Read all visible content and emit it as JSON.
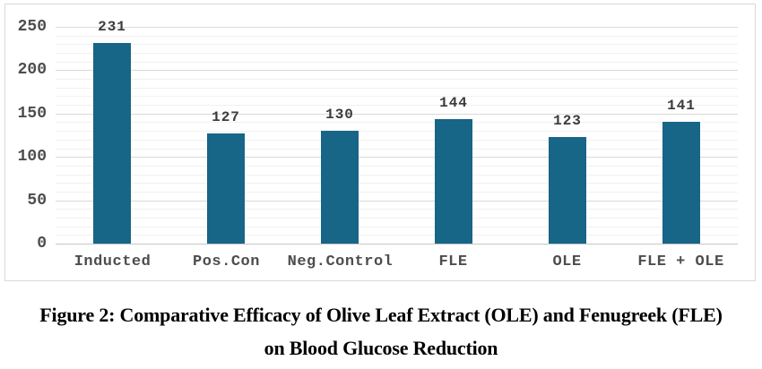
{
  "chart_data": {
    "type": "bar",
    "categories": [
      "Inducted",
      "Pos.Con",
      "Neg.Control",
      "FLE",
      "OLE",
      "FLE + OLE"
    ],
    "values": [
      231,
      127,
      130,
      144,
      123,
      141
    ],
    "data_labels_visible": true,
    "title": "",
    "xlabel": "",
    "ylabel": "",
    "ylim": [
      0,
      250
    ],
    "y_ticks": [
      0,
      50,
      100,
      150,
      200,
      250
    ],
    "y_major_step": 50,
    "y_minor_step": 10,
    "grid": "horizontal-major-and-minor",
    "legend": "none",
    "bar_color": "#176587"
  },
  "figure_caption": {
    "line1": "Figure 2: Comparative Efficacy of Olive Leaf Extract (OLE) and Fenugreek (FLE)",
    "line2": "on Blood Glucose Reduction"
  },
  "colors": {
    "bar": "#176587",
    "background": "#FFFFFF",
    "frame_border": "#D9D9D9",
    "major_gridline": "#D9D9D9",
    "minor_gridline": "#F1F1F1",
    "baseline": "#C6C6C6",
    "tick_label": "#4D4D4D",
    "category_label": "#4D4D4D",
    "value_label": "#3A3A3A",
    "caption_text": "#000000"
  }
}
